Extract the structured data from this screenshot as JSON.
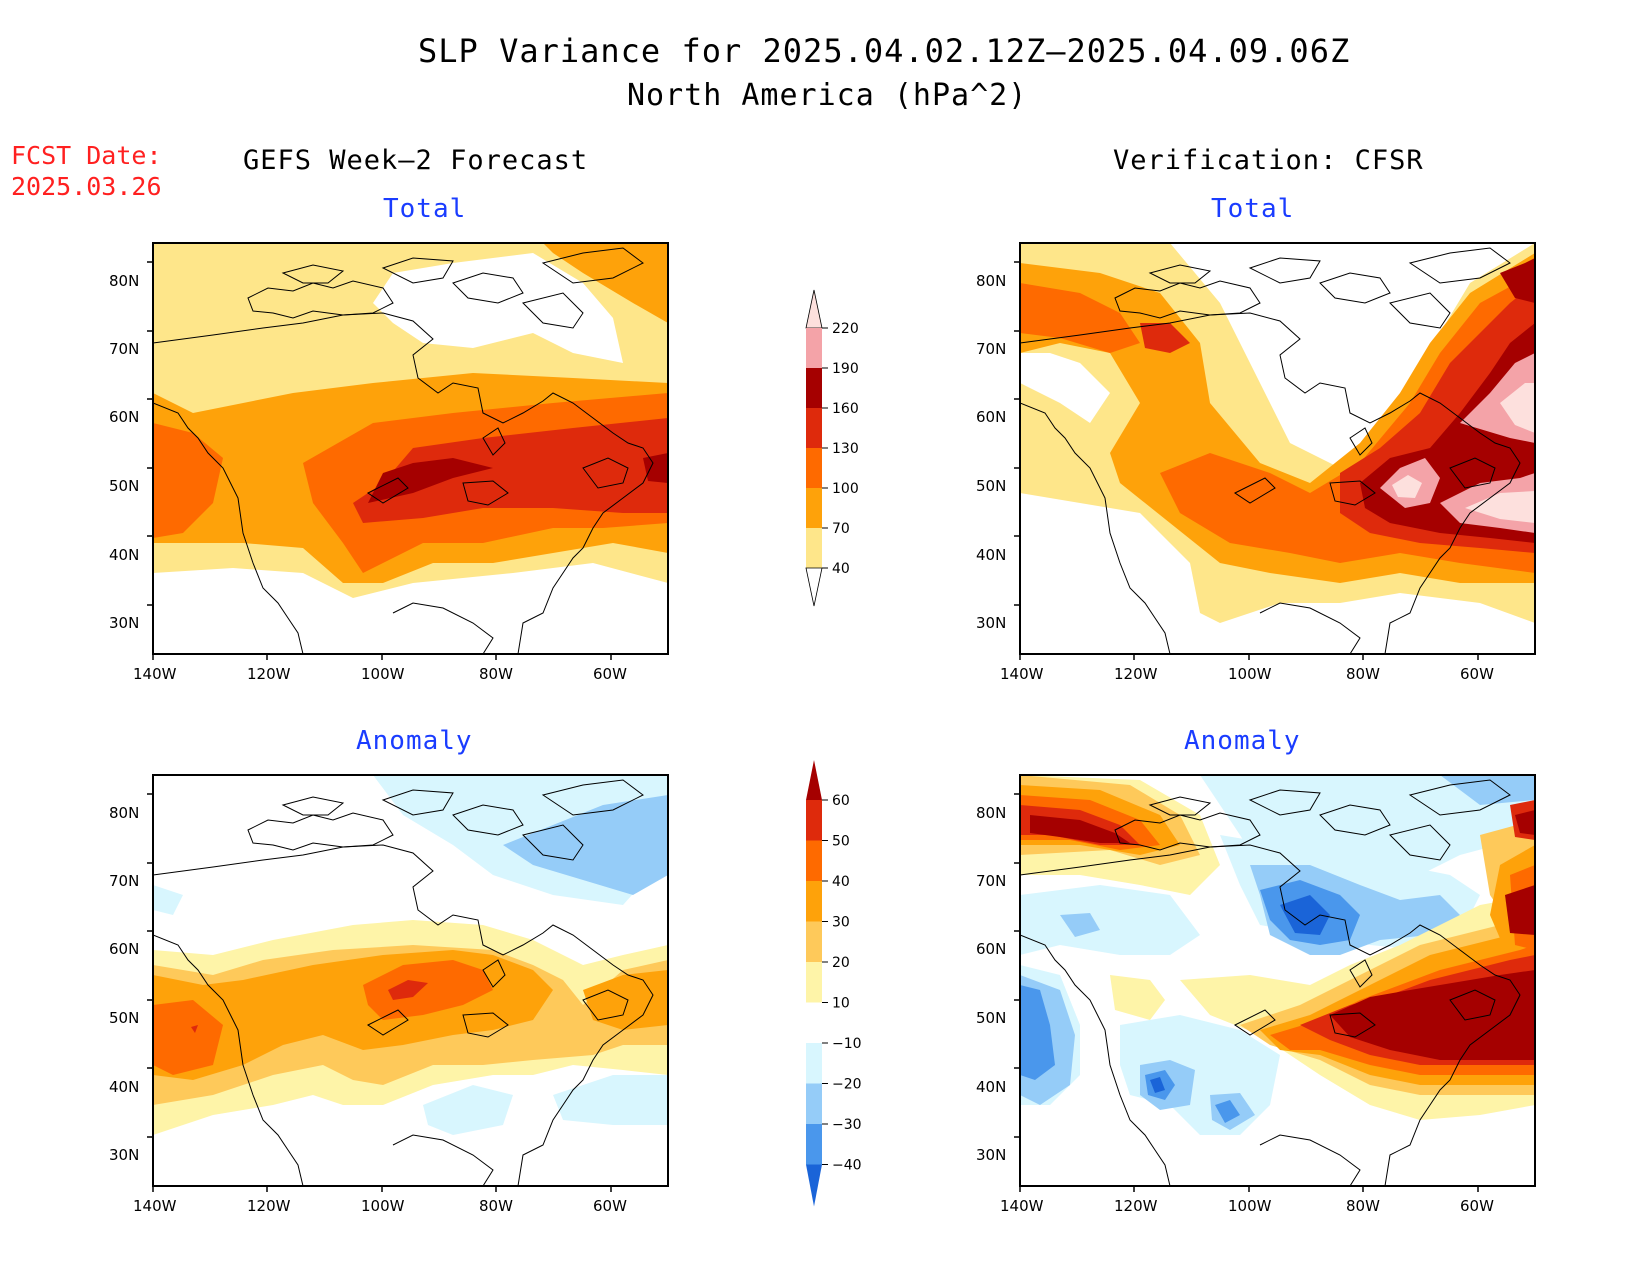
{
  "title": {
    "line1": "SLP Variance for 2025.04.02.12Z–2025.04.09.06Z",
    "line2": "North America (hPa^2)"
  },
  "fcst": {
    "line1": "FCST Date:",
    "line2": "2025.03.26"
  },
  "columns": {
    "left": "GEFS Week–2 Forecast",
    "right": "Verification: CFSR"
  },
  "panels": [
    {
      "label": "Total",
      "source": "GEFS forecast"
    },
    {
      "label": "Total",
      "source": "CFSR verification"
    },
    {
      "label": "Anomaly",
      "source": "GEFS forecast"
    },
    {
      "label": "Anomaly",
      "source": "CFSR verification"
    }
  ],
  "axes": {
    "lat_ticks": [
      "80N",
      "70N",
      "60N",
      "50N",
      "40N",
      "30N"
    ],
    "lon_ticks": [
      "140W",
      "120W",
      "100W",
      "80W",
      "60W"
    ]
  },
  "colorbars": {
    "total": {
      "levels": [
        "220",
        "190",
        "160",
        "130",
        "100",
        "70",
        "40"
      ],
      "colors": [
        "#fde0dd",
        "#f4a3a8",
        "#a50000",
        "#de2a0c",
        "#fe6a00",
        "#fea20a",
        "#fee68a"
      ]
    },
    "anomaly": {
      "levels": [
        "60",
        "50",
        "40",
        "30",
        "20",
        "10",
        "−10",
        "−20",
        "−30",
        "−40"
      ],
      "colors": [
        "#a50000",
        "#de2a0c",
        "#fe6a00",
        "#fea20a",
        "#fec95a",
        "#fef4a8",
        "#ffffff",
        "#d8f6fe",
        "#95ccf8",
        "#4a97ec",
        "#1a64d8"
      ]
    }
  }
}
